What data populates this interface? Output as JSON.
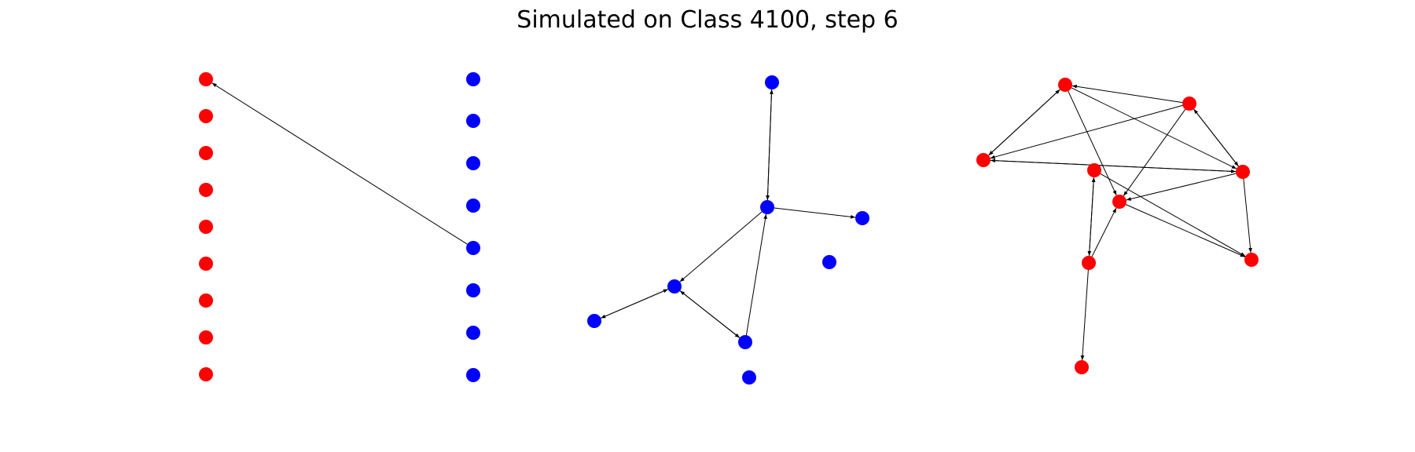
{
  "title": "Simulated on Class 4100, step 6",
  "colors": {
    "red": "#ff0000",
    "blue": "#0000ff",
    "edge": "#000000"
  },
  "panels": [
    {
      "name": "bipartite-graph",
      "nodes": [
        {
          "id": "r1",
          "color": "red"
        },
        {
          "id": "r2",
          "color": "red"
        },
        {
          "id": "r3",
          "color": "red"
        },
        {
          "id": "r4",
          "color": "red"
        },
        {
          "id": "r5",
          "color": "red"
        },
        {
          "id": "r6",
          "color": "red"
        },
        {
          "id": "r7",
          "color": "red"
        },
        {
          "id": "r8",
          "color": "red"
        },
        {
          "id": "r9",
          "color": "red"
        },
        {
          "id": "b1",
          "color": "blue"
        },
        {
          "id": "b2",
          "color": "blue"
        },
        {
          "id": "b3",
          "color": "blue"
        },
        {
          "id": "b4",
          "color": "blue"
        },
        {
          "id": "b5",
          "color": "blue"
        },
        {
          "id": "b6",
          "color": "blue"
        },
        {
          "id": "b7",
          "color": "blue"
        },
        {
          "id": "b8",
          "color": "blue"
        }
      ],
      "edges": [
        {
          "from": "b5",
          "to": "r1"
        }
      ]
    },
    {
      "name": "blue-graph",
      "nodes": [
        {
          "id": "n1",
          "color": "blue"
        },
        {
          "id": "n2",
          "color": "blue"
        },
        {
          "id": "n3",
          "color": "blue"
        },
        {
          "id": "n4",
          "color": "blue"
        },
        {
          "id": "n5",
          "color": "blue"
        },
        {
          "id": "n6",
          "color": "blue"
        },
        {
          "id": "n7",
          "color": "blue"
        },
        {
          "id": "n8",
          "color": "blue"
        }
      ],
      "edges": [
        {
          "from": "n2",
          "to": "n1"
        },
        {
          "from": "n1",
          "to": "n2"
        },
        {
          "from": "n2",
          "to": "n3"
        },
        {
          "from": "n2",
          "to": "n5"
        },
        {
          "from": "n5",
          "to": "n6"
        },
        {
          "from": "n6",
          "to": "n5"
        },
        {
          "from": "n5",
          "to": "n7"
        },
        {
          "from": "n7",
          "to": "n5"
        },
        {
          "from": "n7",
          "to": "n2"
        }
      ]
    },
    {
      "name": "red-graph",
      "nodes": [
        {
          "id": "m1",
          "color": "red"
        },
        {
          "id": "m2",
          "color": "red"
        },
        {
          "id": "m3",
          "color": "red"
        },
        {
          "id": "m4",
          "color": "red"
        },
        {
          "id": "m5",
          "color": "red"
        },
        {
          "id": "m6",
          "color": "red"
        },
        {
          "id": "m7",
          "color": "red"
        },
        {
          "id": "m8",
          "color": "red"
        },
        {
          "id": "m9",
          "color": "red"
        }
      ],
      "edges": [
        {
          "from": "m2",
          "to": "m1"
        },
        {
          "from": "m1",
          "to": "m3"
        },
        {
          "from": "m3",
          "to": "m1"
        },
        {
          "from": "m1",
          "to": "m6"
        },
        {
          "from": "m1",
          "to": "m5"
        },
        {
          "from": "m2",
          "to": "m3"
        },
        {
          "from": "m2",
          "to": "m5"
        },
        {
          "from": "m6",
          "to": "m2"
        },
        {
          "from": "m2",
          "to": "m6"
        },
        {
          "from": "m6",
          "to": "m3"
        },
        {
          "from": "m3",
          "to": "m6"
        },
        {
          "from": "m6",
          "to": "m5"
        },
        {
          "from": "m4",
          "to": "m7"
        },
        {
          "from": "m7",
          "to": "m4"
        },
        {
          "from": "m4",
          "to": "m8"
        },
        {
          "from": "m7",
          "to": "m5"
        },
        {
          "from": "m7",
          "to": "m9"
        },
        {
          "from": "m5",
          "to": "m8"
        },
        {
          "from": "m6",
          "to": "m8"
        }
      ]
    }
  ]
}
